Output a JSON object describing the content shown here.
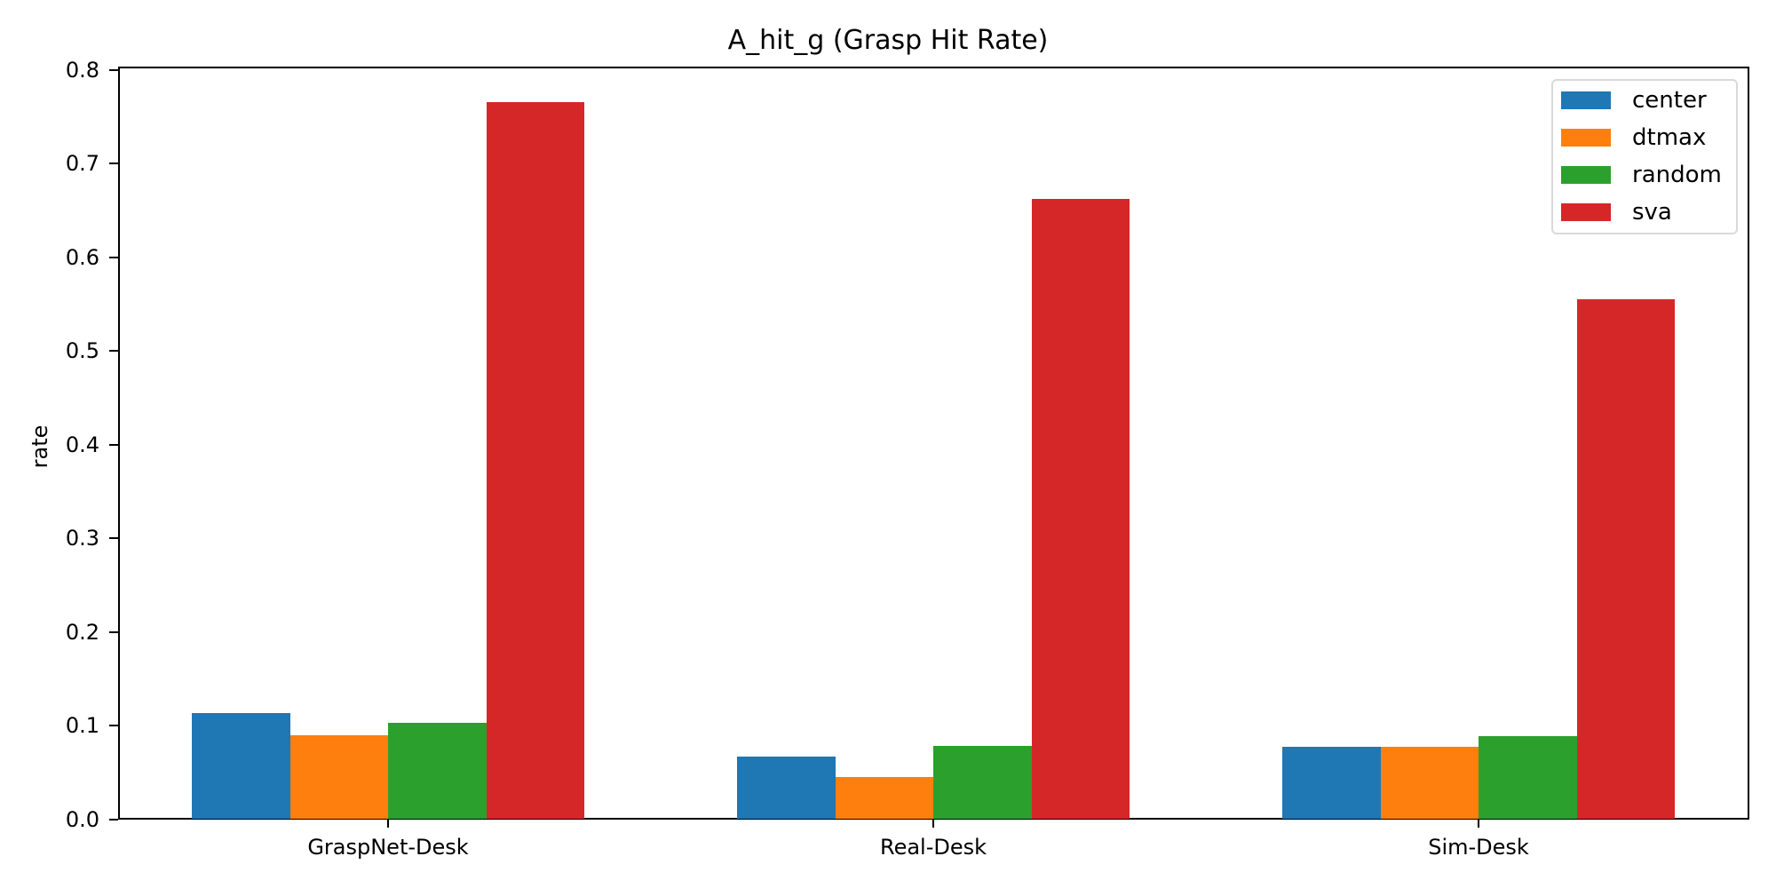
{
  "chart_data": {
    "type": "bar",
    "title": "A_hit_g (Grasp Hit Rate)",
    "xlabel": "",
    "ylabel": "rate",
    "categories": [
      "GraspNet-Desk",
      "Real-Desk",
      "Sim-Desk"
    ],
    "series": [
      {
        "name": "center",
        "color": "#1f77b4",
        "values": [
          0.113,
          0.067,
          0.077
        ]
      },
      {
        "name": "dtmax",
        "color": "#ff7f0e",
        "values": [
          0.09,
          0.045,
          0.077
        ]
      },
      {
        "name": "random",
        "color": "#2ca02c",
        "values": [
          0.103,
          0.078,
          0.089
        ]
      },
      {
        "name": "sva",
        "color": "#d62728",
        "values": [
          0.766,
          0.662,
          0.555
        ]
      }
    ],
    "ylim": [
      0,
      0.804
    ],
    "yticks": [
      "0.0",
      "0.1",
      "0.2",
      "0.3",
      "0.4",
      "0.5",
      "0.6",
      "0.7",
      "0.8"
    ],
    "grid": false,
    "legend_position": "upper right"
  }
}
